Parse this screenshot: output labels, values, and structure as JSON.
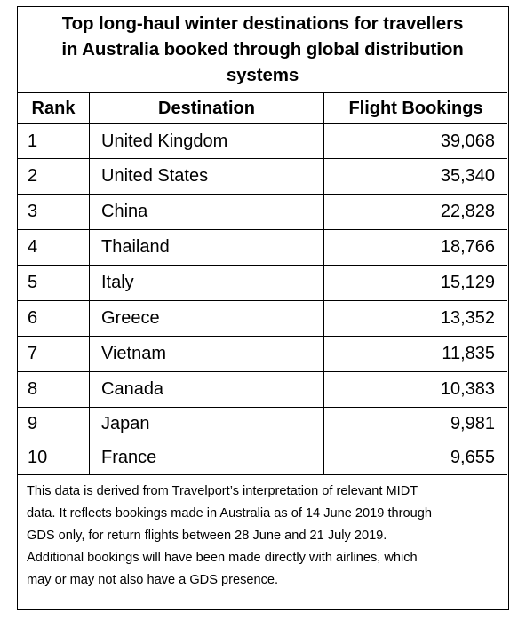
{
  "title_lines": [
    "Top long-haul winter destinations for travellers",
    "in Australia booked through global distribution",
    "systems"
  ],
  "columns": [
    "Rank",
    "Destination",
    "Flight Bookings"
  ],
  "rows": [
    {
      "rank": "1",
      "destination": "United Kingdom",
      "bookings": "39,068"
    },
    {
      "rank": "2",
      "destination": "United States",
      "bookings": "35,340"
    },
    {
      "rank": "3",
      "destination": "China",
      "bookings": "22,828"
    },
    {
      "rank": "4",
      "destination": "Thailand",
      "bookings": "18,766"
    },
    {
      "rank": "5",
      "destination": "Italy",
      "bookings": "15,129"
    },
    {
      "rank": "6",
      "destination": "Greece",
      "bookings": "13,352"
    },
    {
      "rank": "7",
      "destination": "Vietnam",
      "bookings": "11,835"
    },
    {
      "rank": "8",
      "destination": "Canada",
      "bookings": "10,383"
    },
    {
      "rank": "9",
      "destination": "Japan",
      "bookings": "9,981"
    },
    {
      "rank": "10",
      "destination": "France",
      "bookings": "9,655"
    }
  ],
  "note_lines": [
    "This data is derived from Travelport’s interpretation of relevant MIDT",
    "data. It reflects bookings made in Australia as of 14 June 2019 through",
    "GDS only, for return flights between 28 June and 21 July 2019.",
    "Additional bookings will have been made directly with airlines, which",
    "may or may not also have a GDS presence."
  ]
}
